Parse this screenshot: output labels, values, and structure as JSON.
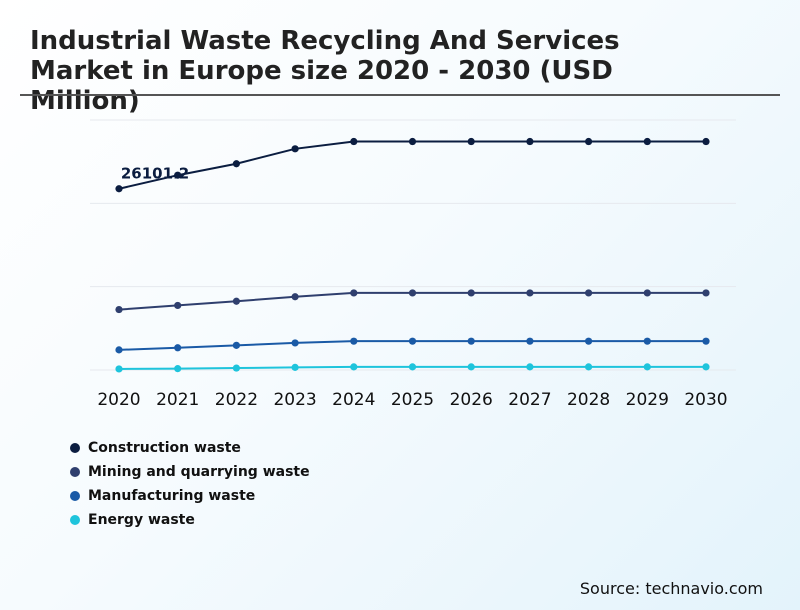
{
  "title": "Industrial Waste Recycling And Services Market in Europe size 2020 - 2030 (USD Million)",
  "source": "Source: technavio.com",
  "colors": {
    "construction": "#0b1d40",
    "mining": "#2f3f6e",
    "manufacturing": "#1a5aa6",
    "energy": "#1ec4dc",
    "grid": "#e6e9ee"
  },
  "chart_data": {
    "type": "line",
    "title": "Industrial Waste Recycling And Services Market in Europe size 2020 - 2030 (USD Million)",
    "xlabel": "",
    "ylabel": "",
    "x": [
      "2020",
      "2021",
      "2022",
      "2023",
      "2024",
      "2025",
      "2026",
      "2027",
      "2028",
      "2029",
      "2030"
    ],
    "ylim": [
      0,
      36000
    ],
    "grid": true,
    "legend_position": "bottom-left",
    "annotations": [
      {
        "series": 0,
        "index": 0,
        "text": "26101.2"
      }
    ],
    "series": [
      {
        "name": "Construction waste",
        "color": "#0b1d40",
        "values": [
          26101.2,
          28050,
          29700,
          31850,
          32900,
          32900,
          32900,
          32900,
          32900,
          32900,
          32900
        ]
      },
      {
        "name": "Mining and quarrying waste",
        "color": "#2f3f6e",
        "values": [
          8700,
          9300,
          9900,
          10550,
          11100,
          11100,
          11100,
          11100,
          11100,
          11100,
          11100
        ]
      },
      {
        "name": "Manufacturing waste",
        "color": "#1a5aa6",
        "values": [
          2900,
          3200,
          3550,
          3900,
          4150,
          4150,
          4150,
          4150,
          4150,
          4150,
          4150
        ]
      },
      {
        "name": "Energy waste",
        "color": "#1ec4dc",
        "values": [
          150,
          200,
          280,
          380,
          450,
          450,
          450,
          450,
          450,
          450,
          450
        ]
      }
    ]
  }
}
